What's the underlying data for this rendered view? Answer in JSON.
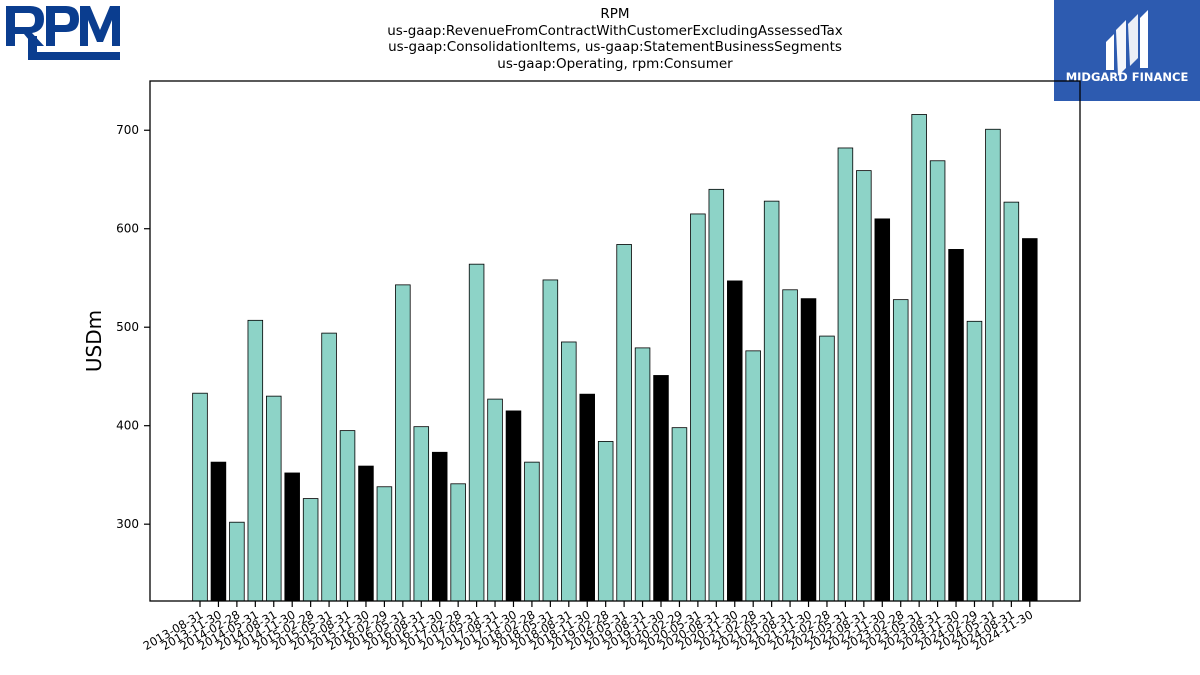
{
  "logos": {
    "left_text": "RPM",
    "right_text": "MIDGARD FINANCE",
    "brand_blue": "#0a3d8f",
    "midgard_blue": "#2d5bb0"
  },
  "chart_data": {
    "type": "bar",
    "title": [
      "RPM",
      "us-gaap:RevenueFromContractWithCustomerExcludingAssessedTax",
      "us-gaap:ConsolidationItems, us-gaap:StatementBusinessSegments",
      "us-gaap:Operating, rpm:Consumer"
    ],
    "xlabel": "",
    "ylabel": "USDm",
    "ylim": [
      222,
      750
    ],
    "yticks": [
      300,
      400,
      500,
      600,
      700
    ],
    "colors": {
      "quarter": "#8dd3c7",
      "november": "#000000",
      "edge": "#000000"
    },
    "categories": [
      "2013-08-31",
      "2013-11-30",
      "2014-02-28",
      "2014-05-31",
      "2014-08-31",
      "2014-11-30",
      "2015-02-28",
      "2015-05-31",
      "2015-08-31",
      "2015-11-30",
      "2016-02-29",
      "2016-05-31",
      "2016-08-31",
      "2016-11-30",
      "2017-02-28",
      "2017-05-31",
      "2017-08-31",
      "2017-11-30",
      "2018-02-28",
      "2018-05-31",
      "2018-08-31",
      "2018-11-30",
      "2019-02-28",
      "2019-05-31",
      "2019-08-31",
      "2019-11-30",
      "2020-02-29",
      "2020-05-31",
      "2020-08-31",
      "2020-11-30",
      "2021-02-28",
      "2021-05-31",
      "2021-08-31",
      "2021-11-30",
      "2022-02-28",
      "2022-05-31",
      "2022-08-31",
      "2022-11-30",
      "2023-02-28",
      "2023-05-31",
      "2023-08-31",
      "2023-11-30",
      "2024-02-29",
      "2024-05-31",
      "2024-08-31",
      "2024-11-30"
    ],
    "values": [
      433,
      363,
      302,
      507,
      430,
      352,
      326,
      494,
      395,
      359,
      338,
      543,
      399,
      373,
      341,
      564,
      427,
      415,
      363,
      548,
      485,
      432,
      384,
      584,
      479,
      451,
      398,
      615,
      640,
      547,
      476,
      628,
      538,
      529,
      491,
      682,
      659,
      610,
      528,
      716,
      669,
      579,
      506,
      701,
      627,
      590
    ],
    "highlight": [
      false,
      true,
      false,
      false,
      false,
      true,
      false,
      false,
      false,
      true,
      false,
      false,
      false,
      true,
      false,
      false,
      false,
      true,
      false,
      false,
      false,
      true,
      false,
      false,
      false,
      true,
      false,
      false,
      false,
      true,
      false,
      false,
      false,
      true,
      false,
      false,
      false,
      true,
      false,
      false,
      false,
      true,
      false,
      false,
      false,
      true
    ]
  }
}
